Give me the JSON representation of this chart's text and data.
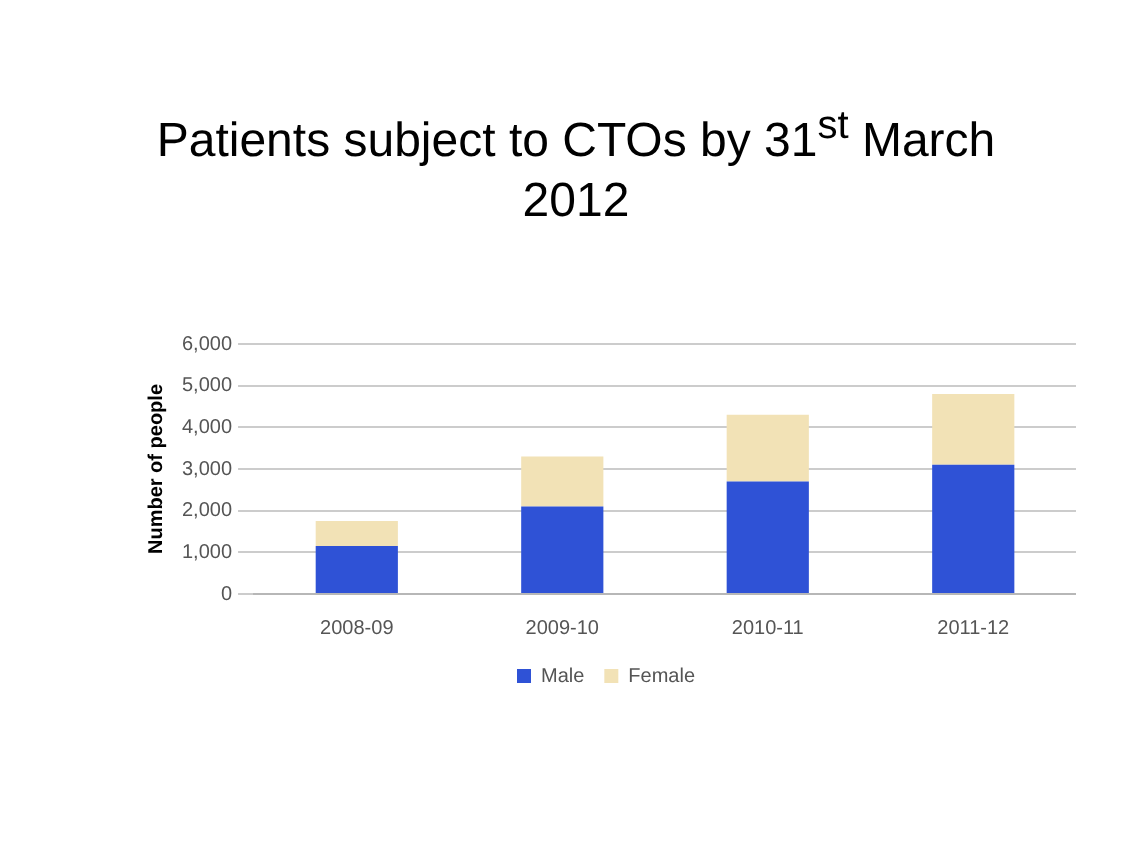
{
  "chart_data": {
    "type": "bar",
    "title": "Patients subject to CTOs by 31$^{st}$ March 2012",
    "ylabel": "Number of people",
    "categories": [
      "2008-09",
      "2009-10",
      "2010-11",
      "2011-12"
    ],
    "stacked": true,
    "series": [
      {
        "name": "Male",
        "color": "#2f52d6",
        "values": [
          1150,
          2100,
          2700,
          3100
        ]
      },
      {
        "name": "Female",
        "color": "#f2e2b6",
        "values": [
          600,
          1200,
          1600,
          1700
        ]
      }
    ],
    "ylim": [
      0,
      6000
    ],
    "yticks": [
      {
        "value": 0,
        "label": "0"
      },
      {
        "value": 1000,
        "label": "1,000"
      },
      {
        "value": 2000,
        "label": "2,000"
      },
      {
        "value": 3000,
        "label": "3,000"
      },
      {
        "value": 4000,
        "label": "4,000"
      },
      {
        "value": 5000,
        "label": "5,000"
      },
      {
        "value": 6000,
        "label": "6,000"
      }
    ],
    "grid": "y",
    "legend": "bottom"
  }
}
